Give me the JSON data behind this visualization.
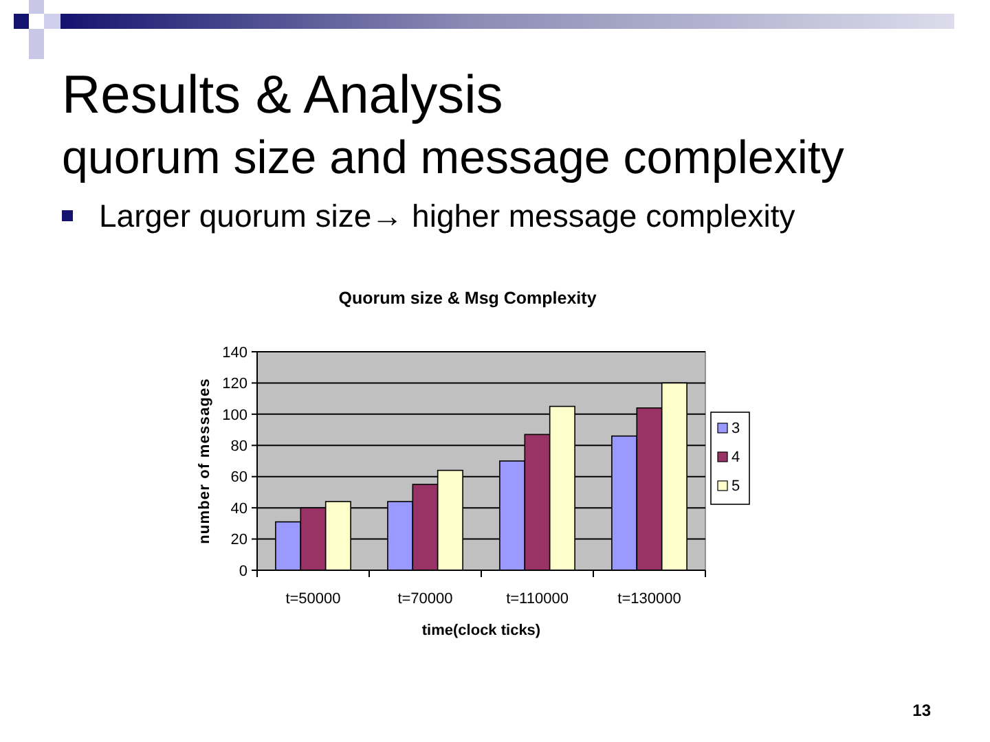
{
  "chart_data": {
    "type": "bar",
    "title": "Quorum size & Msg Complexity",
    "xlabel": "time(clock ticks)",
    "ylabel": "number of messages",
    "categories": [
      "t=50000",
      "t=70000",
      "t=110000",
      "t=130000"
    ],
    "series": [
      {
        "name": "3",
        "color": "#9999ff",
        "values": [
          31,
          44,
          70,
          86
        ]
      },
      {
        "name": "4",
        "color": "#993366",
        "values": [
          40,
          55,
          87,
          104
        ]
      },
      {
        "name": "5",
        "color": "#ffffcc",
        "values": [
          44,
          64,
          105,
          120
        ]
      }
    ],
    "ylim": [
      0,
      140
    ],
    "yticks": [
      0,
      20,
      40,
      60,
      80,
      100,
      120,
      140
    ],
    "grid": "y",
    "legend": "right",
    "annotations": [
      "Results & Analysis",
      "quorum size and message complexity",
      "Larger quorum size→ higher message complexity",
      "13"
    ]
  }
}
